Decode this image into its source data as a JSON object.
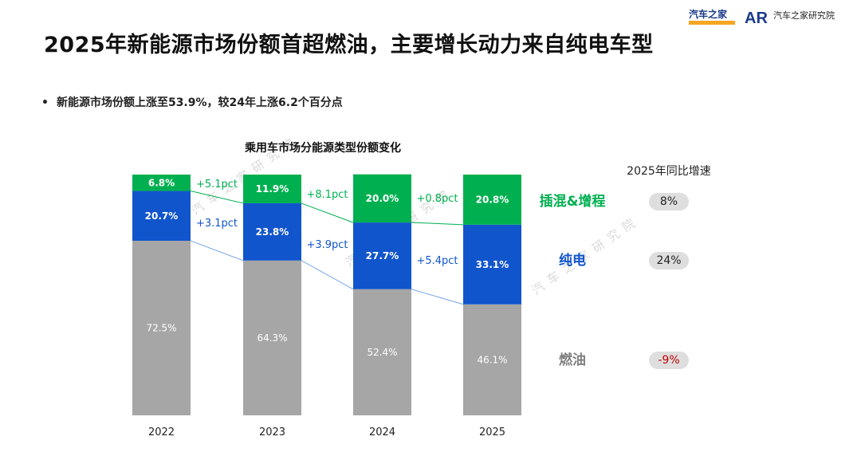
{
  "header": {
    "title": "2025年新能源市场份额首超燃油，主要增长动力来自纯电车型",
    "bullet": "新能源市场份额上涨至53.9%，较24年上涨6.2个百分点"
  },
  "logos": {
    "autohome": "汽车之家",
    "institute": "汽车之家研究院",
    "institute_mark": "AR"
  },
  "colors": {
    "phev": "#00b050",
    "bev": "#1155cc",
    "fuel": "#a6a6a6",
    "negative": "#c00000"
  },
  "chart_data": {
    "type": "bar",
    "stacked": true,
    "title": "乘用车市场分能源类型份额变化",
    "categories": [
      "2022",
      "2023",
      "2024",
      "2025"
    ],
    "series": [
      {
        "name": "燃油",
        "values": [
          72.5,
          64.3,
          52.4,
          46.1
        ],
        "labels": [
          "72.5%",
          "64.3%",
          "52.4%",
          "46.1%"
        ]
      },
      {
        "name": "纯电",
        "values": [
          20.7,
          23.8,
          27.7,
          33.1
        ],
        "labels": [
          "20.7%",
          "23.8%",
          "27.7%",
          "33.1%"
        ]
      },
      {
        "name": "插混&增程",
        "values": [
          6.8,
          11.9,
          20.0,
          20.8
        ],
        "labels": [
          "6.8%",
          "11.9%",
          "20.0%",
          "20.8%"
        ]
      }
    ],
    "annotations": {
      "phev_change": [
        "+5.1pct",
        "+8.1pct",
        "+0.8pct"
      ],
      "bev_change": [
        "+3.1pct",
        "+3.9pct",
        "+5.4pct"
      ]
    },
    "yoy_title": "2025年同比增速",
    "yoy_growth": [
      {
        "name": "插混&增程",
        "value": "8%"
      },
      {
        "name": "纯电",
        "value": "24%"
      },
      {
        "name": "燃油",
        "value": "-9%"
      }
    ],
    "ylim": [
      0,
      100
    ],
    "xlabel": "",
    "ylabel": ""
  }
}
